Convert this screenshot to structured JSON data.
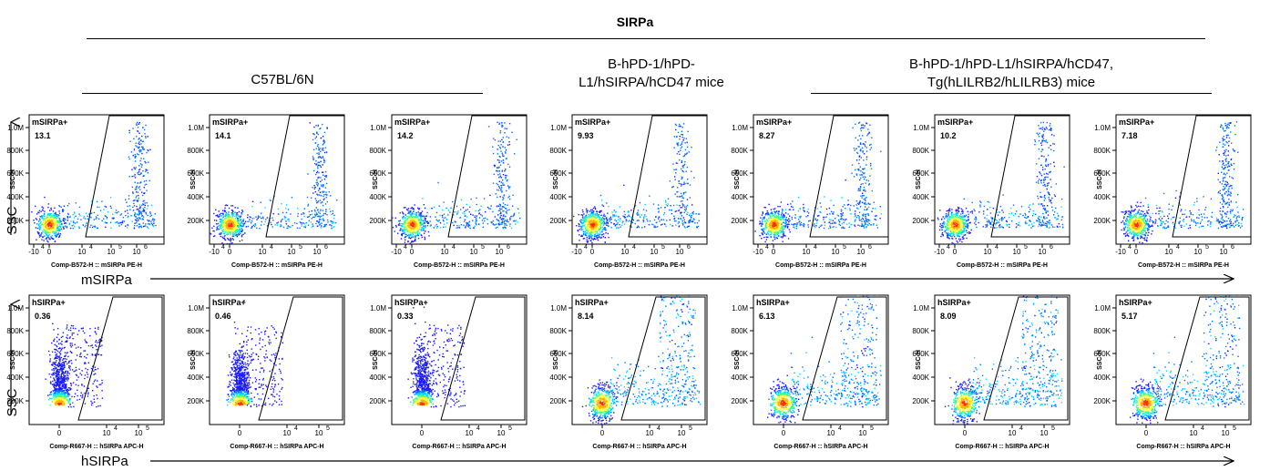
{
  "figure": {
    "title": "SIRPa",
    "groups": [
      {
        "label": "C57BL/6N"
      },
      {
        "label_lines": [
          "B-hPD-1/hPD-",
          "L1/hSIRPA/hCD47 mice"
        ]
      },
      {
        "label_lines": [
          "B-hPD-1/hPD-L1/hSIRPA/hCD47,",
          "Tg(hLILRB2/hLILRB3) mice"
        ]
      }
    ],
    "side_labels": {
      "y": "SSC",
      "x_row1": "mSIRPa",
      "x_row2": "hSIRPa"
    }
  },
  "chart_data": [
    {
      "type": "scatter",
      "row": "mSIRPa",
      "gate_label": "mSIRPa+",
      "xlabel": "Comp-B572-H :: mSIRPa PE-H",
      "ylabel": "SSC-H",
      "x_ticks": [
        "-10",
        "4",
        "0",
        "10",
        "4",
        "10",
        "5",
        "10",
        "6"
      ],
      "y_ticks": [
        "200K",
        "400K",
        "600K",
        "800K",
        "1.0M"
      ],
      "panels": [
        {
          "gate_value": "13.1",
          "density": "high"
        },
        {
          "gate_value": "14.1",
          "density": "high"
        },
        {
          "gate_value": "14.2",
          "density": "high"
        },
        {
          "gate_value": "9.93",
          "density": "high"
        },
        {
          "gate_value": "8.27",
          "density": "high"
        },
        {
          "gate_value": "10.2",
          "density": "high"
        },
        {
          "gate_value": "7.18",
          "density": "high"
        }
      ]
    },
    {
      "type": "scatter",
      "row": "hSIRPa",
      "gate_label": "hSIRPa+",
      "xlabel": "Comp-R667-H :: hSIRPa APC-H",
      "ylabel": "SSC-H",
      "x_ticks": [
        "0",
        "10",
        "4",
        "10",
        "5"
      ],
      "y_ticks": [
        "200K",
        "400K",
        "600K",
        "800K",
        "1.0M"
      ],
      "panels": [
        {
          "gate_value": "0.36",
          "density": "low"
        },
        {
          "gate_value": "0.46",
          "density": "low"
        },
        {
          "gate_value": "0.33",
          "density": "low"
        },
        {
          "gate_value": "8.14",
          "density": "high"
        },
        {
          "gate_value": "6.13",
          "density": "high"
        },
        {
          "gate_value": "8.09",
          "density": "high"
        },
        {
          "gate_value": "5.17",
          "density": "high"
        }
      ]
    }
  ]
}
